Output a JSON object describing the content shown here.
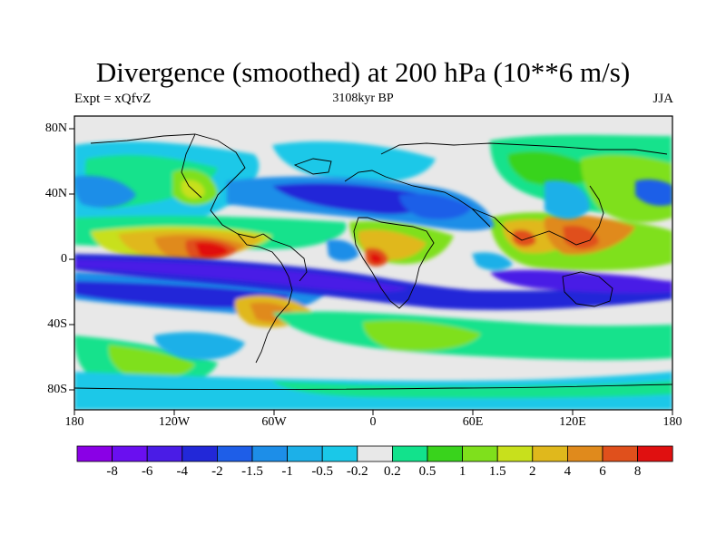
{
  "title": "Divergence (smoothed) at 200 hPa (10**6 m/s)",
  "left_label": "Expt = xQfvZ",
  "center_label": "3108kyr BP",
  "right_label": "JJA",
  "y_ticks": [
    "80N",
    "40N",
    "0",
    "40S",
    "80S"
  ],
  "x_ticks": [
    "180",
    "120W",
    "60W",
    "0",
    "60E",
    "120E",
    "180"
  ],
  "colorbar": {
    "labels": [
      "-8",
      "-6",
      "-4",
      "-2",
      "-1.5",
      "-1",
      "-0.5",
      "-0.2",
      "0.2",
      "0.5",
      "1",
      "1.5",
      "2",
      "4",
      "6",
      "8"
    ],
    "colors": [
      "#8a00e6",
      "#6a0ff0",
      "#4a1ce6",
      "#2228d8",
      "#1e5ee8",
      "#1d8ee8",
      "#1cb0e8",
      "#1ac8e8",
      "#e8e8e8",
      "#12e28c",
      "#39d31c",
      "#7fe01c",
      "#c8e01c",
      "#e0b81c",
      "#e08a1c",
      "#e0501c",
      "#e01010"
    ]
  },
  "map_regions": [
    "equatorial-pacific-divergence-max",
    "indian-monsoon-divergence",
    "africa-divergence-center",
    "southern-subtropics-convergence-belt",
    "north-pacific-convergence"
  ]
}
